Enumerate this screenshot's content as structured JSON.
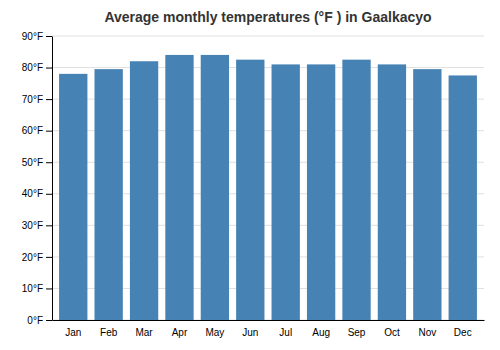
{
  "chart_data": {
    "type": "bar",
    "title": "Average monthly temperatures (°F ) in Gaalkacyo",
    "categories": [
      "Jan",
      "Feb",
      "Mar",
      "Apr",
      "May",
      "Jun",
      "Jul",
      "Aug",
      "Sep",
      "Oct",
      "Nov",
      "Dec"
    ],
    "values": [
      78,
      79.5,
      82,
      84,
      84,
      82.5,
      81,
      81,
      82.5,
      81,
      79.5,
      77.5
    ],
    "ylim": [
      0,
      90
    ],
    "yticks": [
      {
        "value": 0,
        "label": "0°F"
      },
      {
        "value": 10,
        "label": "10°F"
      },
      {
        "value": 20,
        "label": "20°F"
      },
      {
        "value": 30,
        "label": "30°F"
      },
      {
        "value": 40,
        "label": "40°F"
      },
      {
        "value": 50,
        "label": "50°F"
      },
      {
        "value": 60,
        "label": "60°F"
      },
      {
        "value": 70,
        "label": "70°F"
      },
      {
        "value": 80,
        "label": "80°F"
      },
      {
        "value": 90,
        "label": "90°F"
      }
    ],
    "grid": true
  }
}
